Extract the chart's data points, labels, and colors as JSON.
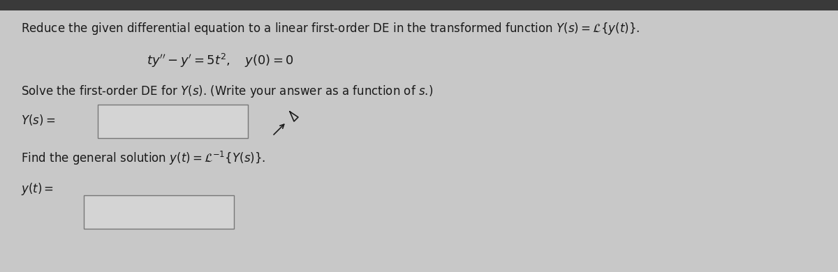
{
  "bg_color": "#c8c8c8",
  "box_fill": "#d4d4d4",
  "text_color": "#1a1a1a",
  "dark_bar_color": "#3a3a3a",
  "line1_plain": "Reduce the given differential equation to a linear first-order DE in the transformed function ",
  "line1_math": "$Y(s) = \\mathcal{L}\\{y(t)\\}$.",
  "line2": "$ty'' - y' = 5t^2, \\quad y(0) = 0$",
  "line3": "Solve the first-order DE for $Y(s)$. (Write your answer as a function of $s$.)",
  "label_Ys": "$Y(s) =$",
  "label_yt": "$y(t) =$",
  "line4": "Find the general solution $y(t) = \\mathcal{L}^{-1}\\{Y(s)\\}$.",
  "font_size_main": 12.0,
  "font_size_eq": 13.0
}
